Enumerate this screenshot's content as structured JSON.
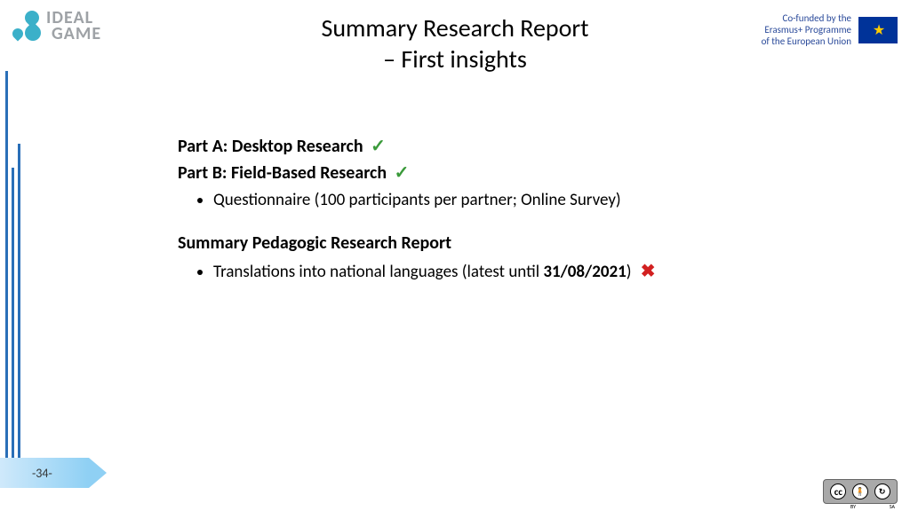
{
  "logo": {
    "line1": "IDEAL",
    "line2": "GAME",
    "brand_color": "#3bb0c9",
    "text_color": "#9ea2a6"
  },
  "title": {
    "line1": "Summary Research Report",
    "line2": "– First insights"
  },
  "eu": {
    "l1": "Co-funded by the",
    "l2": "Erasmus+ Programme",
    "l3": "of the European Union"
  },
  "content": {
    "partA": "Part A: Desktop Research",
    "partB": "Part B: Field-Based Research",
    "partB_bullet": "Questionnaire (100 participants per partner; Online Survey)",
    "section2": "Summary Pedagogic Research Report",
    "section2_bullet_pre": "Translations into national languages (latest until ",
    "section2_bullet_date": "31/08/2021",
    "section2_bullet_post": ")"
  },
  "page_number": "-34-",
  "cc": {
    "cc": "cc",
    "by": "BY",
    "sa": "SA"
  },
  "colors": {
    "check": "#3a9a3a",
    "cross": "#d22020",
    "bar": "#2a6fb8",
    "eu_blue": "#003399",
    "eu_text": "#2a4a9a",
    "arrow_start": "#cfe9fb",
    "arrow_end": "#8fd0f4"
  }
}
